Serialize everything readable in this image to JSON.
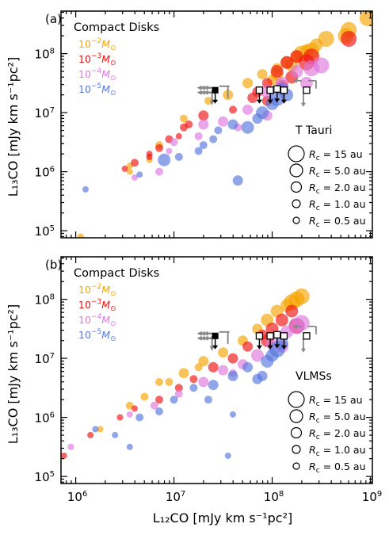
{
  "figure": {
    "x_axis_title": "L₁₂CO [mJy km s⁻¹pc²]",
    "y_axis_title": "L₁₃CO [mJy km s⁻¹pc²]",
    "x_ticks": [
      {
        "exp": 6,
        "label": "10",
        "sup": "6"
      },
      {
        "exp": 7,
        "label": "10",
        "sup": "7"
      },
      {
        "exp": 8,
        "label": "10",
        "sup": "8"
      },
      {
        "exp": 9,
        "label": "10",
        "sup": "9"
      }
    ],
    "y_ticks": [
      {
        "exp": 5,
        "label": "10",
        "sup": "5"
      },
      {
        "exp": 6,
        "label": "10",
        "sup": "6"
      },
      {
        "exp": 7,
        "label": "10",
        "sup": "7"
      },
      {
        "exp": 8,
        "label": "10",
        "sup": "8"
      }
    ]
  },
  "colors": {
    "1e-2": "#f5a500",
    "1e-3": "#ee1111",
    "1e-4": "#dd77dd",
    "1e-5": "#5577dd",
    "observed_arrow": "#888888",
    "observed_marker": "#000000"
  },
  "chart_data": [
    {
      "type": "scatter",
      "panel_tag": "(a)",
      "sample_label": "T Tauri",
      "legend_title": "Compact Disks",
      "legend_entries": [
        {
          "mass_key": "1e-2",
          "base": "10",
          "exp": "−2",
          "unit": "M",
          "sub": "⊙"
        },
        {
          "mass_key": "1e-3",
          "base": "10",
          "exp": "−3",
          "unit": "M",
          "sub": "⊙"
        },
        {
          "mass_key": "1e-4",
          "base": "10",
          "exp": "−4",
          "unit": "M",
          "sub": "⊙"
        },
        {
          "mass_key": "1e-5",
          "base": "10",
          "exp": "−5",
          "unit": "M",
          "sub": "⊙"
        }
      ],
      "size_legend": [
        {
          "rc": "15",
          "label": "R",
          "sub": "c",
          "rest": " = 15 au"
        },
        {
          "rc": "5.0",
          "label": "R",
          "sub": "c",
          "rest": " = 5.0 au"
        },
        {
          "rc": "2.0",
          "label": "R",
          "sub": "c",
          "rest": " = 2.0 au"
        },
        {
          "rc": "1.0",
          "label": "R",
          "sub": "c",
          "rest": " = 1.0 au"
        },
        {
          "rc": "0.5",
          "label": "R",
          "sub": "c",
          "rest": " = 0.5 au"
        }
      ],
      "x_log_range": [
        5.85,
        9.02
      ],
      "y_log_range": [
        4.88,
        8.72
      ],
      "series": [
        {
          "mass_key": "1e-2",
          "points": [
            [
              6.05,
              4.9,
              0.5
            ],
            [
              6.55,
              6.1,
              0.5
            ],
            [
              6.75,
              6.2,
              0.5
            ],
            [
              7.1,
              6.9,
              1.0
            ],
            [
              7.35,
              7.2,
              1.0
            ],
            [
              7.55,
              7.3,
              2.0
            ],
            [
              7.75,
              7.5,
              2.0
            ],
            [
              7.9,
              7.65,
              2.0
            ],
            [
              8.05,
              7.75,
              2.0
            ],
            [
              8.15,
              7.85,
              5.0
            ],
            [
              8.25,
              7.95,
              5.0
            ],
            [
              8.35,
              8.05,
              5.0
            ],
            [
              8.45,
              8.15,
              5.0
            ],
            [
              8.55,
              8.25,
              15
            ],
            [
              8.75,
              8.3,
              15
            ],
            [
              8.78,
              8.4,
              15
            ],
            [
              8.97,
              8.6,
              15
            ],
            [
              8.3,
              8.0,
              15
            ],
            [
              8.4,
              8.05,
              15
            ],
            [
              8.05,
              7.65,
              5.0
            ],
            [
              8.2,
              7.8,
              5.0
            ],
            [
              8.0,
              7.55,
              2.0
            ],
            [
              6.85,
              6.45,
              1.0
            ],
            [
              6.55,
              6.0,
              0.5
            ]
          ]
        },
        {
          "mass_key": "1e-3",
          "points": [
            [
              6.5,
              6.05,
              0.5
            ],
            [
              6.6,
              6.15,
              1.0
            ],
            [
              6.75,
              6.3,
              0.5
            ],
            [
              6.85,
              6.4,
              1.0
            ],
            [
              6.95,
              6.55,
              1.0
            ],
            [
              7.05,
              6.6,
              0.5
            ],
            [
              7.15,
              6.8,
              1.0
            ],
            [
              7.3,
              6.95,
              2.0
            ],
            [
              7.6,
              7.05,
              1.0
            ],
            [
              7.8,
              7.25,
              2.0
            ],
            [
              7.95,
              7.5,
              2.0
            ],
            [
              8.05,
              7.7,
              5.0
            ],
            [
              8.15,
              7.85,
              5.0
            ],
            [
              8.25,
              7.95,
              5.0
            ],
            [
              8.35,
              7.85,
              15
            ],
            [
              8.4,
              7.95,
              15
            ],
            [
              8.78,
              8.25,
              15
            ],
            [
              7.95,
              7.2,
              2.0
            ],
            [
              8.1,
              7.45,
              5.0
            ],
            [
              8.2,
              7.6,
              5.0
            ],
            [
              7.85,
              7.35,
              2.0
            ],
            [
              7.1,
              6.75,
              1.0
            ],
            [
              6.75,
              6.25,
              0.5
            ]
          ]
        },
        {
          "mass_key": "1e-4",
          "points": [
            [
              6.6,
              5.9,
              0.5
            ],
            [
              6.85,
              6.0,
              1.0
            ],
            [
              7.0,
              6.5,
              1.0
            ],
            [
              7.3,
              6.8,
              2.0
            ],
            [
              7.5,
              6.85,
              2.0
            ],
            [
              7.75,
              7.05,
              2.0
            ],
            [
              7.95,
              7.35,
              5.0
            ],
            [
              8.1,
              7.5,
              5.0
            ],
            [
              8.25,
              7.7,
              5.0
            ],
            [
              8.4,
              7.75,
              15
            ],
            [
              8.5,
              7.8,
              15
            ],
            [
              8.35,
              7.5,
              5.0
            ],
            [
              7.65,
              6.75,
              1.0
            ],
            [
              7.95,
              6.95,
              2.0
            ],
            [
              7.25,
              6.6,
              1.0
            ],
            [
              6.95,
              6.35,
              0.5
            ]
          ]
        },
        {
          "mass_key": "1e-5",
          "points": [
            [
              6.1,
              5.7,
              0.5
            ],
            [
              6.65,
              5.95,
              0.5
            ],
            [
              6.9,
              6.2,
              5.0
            ],
            [
              7.25,
              6.35,
              1.0
            ],
            [
              7.4,
              6.55,
              1.0
            ],
            [
              7.6,
              6.8,
              2.0
            ],
            [
              7.65,
              5.85,
              2.0
            ],
            [
              7.75,
              6.75,
              5.0
            ],
            [
              7.9,
              7.0,
              5.0
            ],
            [
              8.0,
              7.15,
              5.0
            ],
            [
              8.05,
              7.25,
              15
            ],
            [
              8.1,
              7.4,
              5.0
            ],
            [
              8.15,
              7.3,
              5.0
            ],
            [
              7.3,
              6.45,
              1.0
            ],
            [
              7.45,
              6.7,
              1.0
            ],
            [
              7.85,
              6.9,
              2.0
            ],
            [
              7.05,
              6.25,
              1.0
            ]
          ]
        }
      ],
      "observed_limits": [
        {
          "x": 7.42,
          "y": 7.38,
          "type": "filled"
        },
        {
          "x": 7.87,
          "y": 7.38,
          "type": "open"
        },
        {
          "x": 7.98,
          "y": 7.38,
          "type": "open"
        },
        {
          "x": 8.05,
          "y": 7.4,
          "type": "open"
        },
        {
          "x": 8.12,
          "y": 7.38,
          "type": "open"
        },
        {
          "x": 8.35,
          "y": 7.38,
          "type": "open"
        }
      ]
    },
    {
      "type": "scatter",
      "panel_tag": "(b)",
      "sample_label": "VLMSs",
      "legend_title": "Compact Disks",
      "legend_entries": [
        {
          "mass_key": "1e-2",
          "base": "10",
          "exp": "−2",
          "unit": "M",
          "sub": "⊙"
        },
        {
          "mass_key": "1e-3",
          "base": "10",
          "exp": "−3",
          "unit": "M",
          "sub": "⊙"
        },
        {
          "mass_key": "1e-4",
          "base": "10",
          "exp": "−4",
          "unit": "M",
          "sub": "⊙"
        },
        {
          "mass_key": "1e-5",
          "base": "10",
          "exp": "−5",
          "unit": "M",
          "sub": "⊙"
        }
      ],
      "size_legend": [
        {
          "rc": "15",
          "label": "R",
          "sub": "c",
          "rest": " = 15 au"
        },
        {
          "rc": "5.0",
          "label": "R",
          "sub": "c",
          "rest": " = 5.0 au"
        },
        {
          "rc": "2.0",
          "label": "R",
          "sub": "c",
          "rest": " = 2.0 au"
        },
        {
          "rc": "1.0",
          "label": "R",
          "sub": "c",
          "rest": " = 1.0 au"
        },
        {
          "rc": "0.5",
          "label": "R",
          "sub": "c",
          "rest": " = 0.5 au"
        }
      ],
      "x_log_range": [
        5.85,
        9.02
      ],
      "y_log_range": [
        4.88,
        8.72
      ],
      "series": [
        {
          "mass_key": "1e-2",
          "points": [
            [
              6.25,
              5.8,
              0.5
            ],
            [
              6.55,
              6.2,
              1.0
            ],
            [
              6.7,
              6.35,
              1.0
            ],
            [
              6.95,
              6.6,
              1.0
            ],
            [
              7.1,
              6.75,
              2.0
            ],
            [
              7.3,
              6.95,
              2.0
            ],
            [
              7.5,
              7.1,
              2.0
            ],
            [
              7.7,
              7.3,
              2.0
            ],
            [
              7.85,
              7.5,
              2.0
            ],
            [
              7.95,
              7.65,
              5.0
            ],
            [
              8.05,
              7.8,
              5.0
            ],
            [
              8.15,
              7.9,
              5.0
            ],
            [
              8.2,
              7.95,
              15
            ],
            [
              8.25,
              8.0,
              15
            ],
            [
              8.3,
              8.05,
              15
            ],
            [
              6.85,
              6.6,
              1.0
            ],
            [
              7.25,
              6.85,
              1.0
            ]
          ]
        },
        {
          "mass_key": "1e-3",
          "points": [
            [
              5.88,
              5.35,
              0.5
            ],
            [
              6.15,
              5.7,
              0.5
            ],
            [
              6.45,
              6.0,
              0.5
            ],
            [
              6.6,
              6.15,
              0.5
            ],
            [
              6.85,
              6.3,
              1.0
            ],
            [
              7.05,
              6.5,
              1.0
            ],
            [
              7.2,
              6.65,
              1.0
            ],
            [
              7.4,
              6.85,
              2.0
            ],
            [
              7.6,
              7.0,
              2.0
            ],
            [
              7.75,
              7.2,
              2.0
            ],
            [
              7.9,
              7.4,
              2.0
            ],
            [
              8.0,
              7.5,
              5.0
            ],
            [
              8.1,
              7.65,
              5.0
            ],
            [
              8.2,
              7.8,
              5.0
            ],
            [
              8.25,
              7.55,
              15
            ],
            [
              7.95,
              7.3,
              5.0
            ]
          ]
        },
        {
          "mass_key": "1e-4",
          "points": [
            [
              5.95,
              5.5,
              0.5
            ],
            [
              6.55,
              6.05,
              0.5
            ],
            [
              6.8,
              6.2,
              1.0
            ],
            [
              7.05,
              6.4,
              1.0
            ],
            [
              7.3,
              6.6,
              2.0
            ],
            [
              7.5,
              6.8,
              2.0
            ],
            [
              7.7,
              6.9,
              2.0
            ],
            [
              7.85,
              7.05,
              5.0
            ],
            [
              8.0,
              7.25,
              5.0
            ],
            [
              8.15,
              7.45,
              5.0
            ],
            [
              8.25,
              7.55,
              15
            ],
            [
              8.3,
              7.6,
              15
            ],
            [
              7.6,
              6.75,
              1.0
            ],
            [
              8.1,
              7.2,
              5.0
            ]
          ]
        },
        {
          "mass_key": "1e-5",
          "points": [
            [
              6.2,
              5.8,
              0.5
            ],
            [
              6.4,
              5.7,
              0.5
            ],
            [
              6.55,
              5.5,
              0.5
            ],
            [
              6.65,
              6.0,
              1.0
            ],
            [
              6.85,
              6.1,
              1.0
            ],
            [
              7.0,
              6.3,
              1.0
            ],
            [
              7.2,
              6.5,
              1.0
            ],
            [
              7.4,
              6.55,
              2.0
            ],
            [
              7.55,
              5.35,
              0.5
            ],
            [
              7.6,
              6.7,
              2.0
            ],
            [
              7.75,
              6.85,
              2.0
            ],
            [
              7.85,
              6.65,
              2.0
            ],
            [
              7.95,
              6.95,
              5.0
            ],
            [
              8.0,
              7.05,
              5.0
            ],
            [
              8.05,
              7.15,
              15
            ],
            [
              8.1,
              7.25,
              5.0
            ],
            [
              7.35,
              6.3,
              1.0
            ],
            [
              7.6,
              6.05,
              0.5
            ],
            [
              7.9,
              6.7,
              2.0
            ]
          ]
        }
      ],
      "observed_limits": [
        {
          "x": 7.42,
          "y": 7.38,
          "type": "filled"
        },
        {
          "x": 7.87,
          "y": 7.38,
          "type": "open"
        },
        {
          "x": 7.98,
          "y": 7.38,
          "type": "open"
        },
        {
          "x": 8.05,
          "y": 7.4,
          "type": "open"
        },
        {
          "x": 8.12,
          "y": 7.38,
          "type": "open"
        },
        {
          "x": 8.35,
          "y": 7.38,
          "type": "open"
        }
      ]
    }
  ]
}
